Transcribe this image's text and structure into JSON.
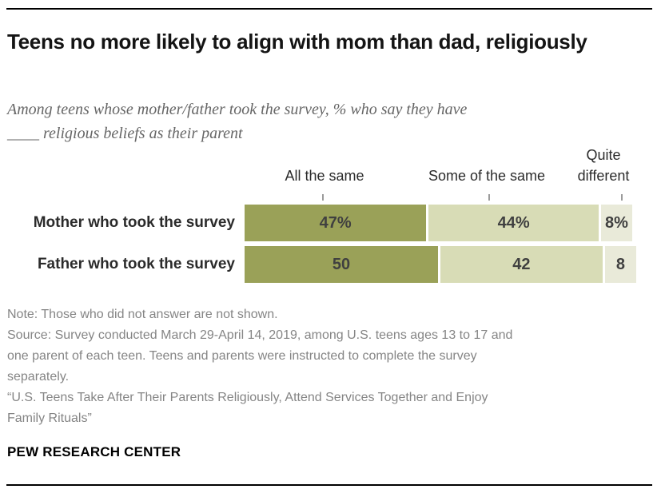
{
  "header": {
    "title": "Teens no more likely to align with mom than dad, religiously",
    "subtitle": "Among teens whose mother/father took the survey, % who say they have ____ religious beliefs as their parent"
  },
  "chart_data": {
    "type": "bar",
    "orientation": "horizontal-stacked",
    "categories": [
      "Mother who took the survey",
      "Father who took the survey"
    ],
    "series": [
      {
        "name": "All the same",
        "values": [
          47,
          50
        ],
        "color": "#9aa158"
      },
      {
        "name": "Some of the same",
        "values": [
          44,
          42
        ],
        "color": "#d8dcb6"
      },
      {
        "name": "Quite different",
        "values": [
          8,
          8
        ],
        "color": "#e9ead9"
      }
    ],
    "value_labels": [
      [
        "47%",
        "44%",
        "8%"
      ],
      [
        "50",
        "42",
        "8"
      ]
    ],
    "xlim": [
      0,
      100
    ],
    "grid": false,
    "legend_position": "top",
    "value_label_color": "#404040"
  },
  "footer": {
    "note": "Note: Those who did not answer are not shown.",
    "source": "Source: Survey conducted March 29-April 14, 2019, among U.S. teens ages 13 to 17 and one parent of each teen. Teens and parents were instructed to complete the survey separately.",
    "quote": "“U.S. Teens Take After Their Parents Religiously, Attend Services Together and Enjoy Family Rituals”",
    "brand": "PEW RESEARCH CENTER"
  }
}
